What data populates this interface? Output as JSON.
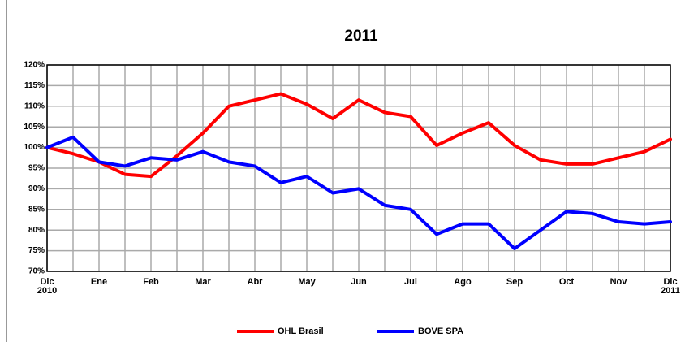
{
  "chart_data": {
    "type": "line",
    "title": "2011",
    "categories": [
      "Dic\n2010",
      null,
      "Ene",
      null,
      "Feb",
      null,
      "Mar",
      null,
      "Abr",
      null,
      "May",
      null,
      "Jun",
      null,
      "Jul",
      null,
      "Ago",
      null,
      "Sep",
      null,
      "Oct",
      null,
      "Nov",
      null,
      "Dic\n2011"
    ],
    "series": [
      {
        "name": "OHL Brasil",
        "color": "#ff0000",
        "values": [
          100,
          98.5,
          96.5,
          93.5,
          93,
          98,
          103.5,
          110,
          111.5,
          113,
          110.5,
          107,
          111.5,
          108.5,
          107.5,
          100.5,
          103.5,
          106,
          100.5,
          97,
          96,
          96,
          97.5,
          99,
          102
        ]
      },
      {
        "name": "BOVE SPA",
        "color": "#0000ff",
        "values": [
          100,
          102.5,
          96.5,
          95.5,
          97.5,
          97,
          99,
          96.5,
          95.5,
          91.5,
          93,
          89,
          90,
          86,
          85,
          79,
          81.5,
          81.5,
          75.5,
          80,
          84.5,
          84,
          82,
          81.5,
          82
        ]
      }
    ],
    "ylim": [
      70,
      120
    ],
    "yticks": [
      {
        "value": 70,
        "label": "70%"
      },
      {
        "value": 75,
        "label": "75%"
      },
      {
        "value": 80,
        "label": "80%"
      },
      {
        "value": 85,
        "label": "85%"
      },
      {
        "value": 90,
        "label": "90%"
      },
      {
        "value": 95,
        "label": "95%"
      },
      {
        "value": 100,
        "label": "100%"
      },
      {
        "value": 105,
        "label": "105%"
      },
      {
        "value": 110,
        "label": "110%"
      },
      {
        "value": 115,
        "label": "115%"
      },
      {
        "value": 120,
        "label": "120%"
      }
    ],
    "grid": true
  }
}
